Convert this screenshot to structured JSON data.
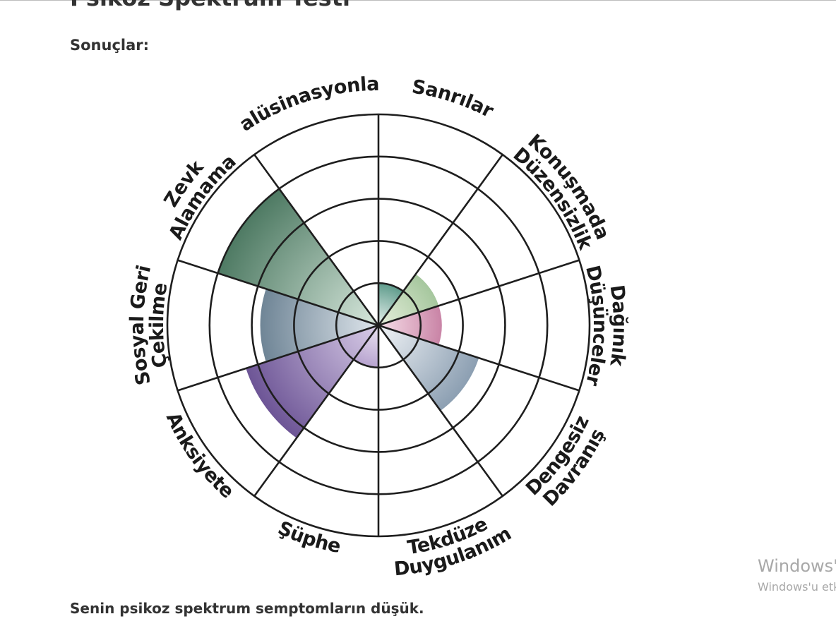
{
  "page": {
    "title": "Psikoz Spektrum Testi",
    "results_label": "Sonuçlar:",
    "summary": "Senin psikoz spektrum semptomların düşük."
  },
  "watermark": {
    "line1": "Windows'u",
    "line2": "Windows'u etk"
  },
  "chart_data": {
    "type": "polar-area",
    "rings": 5,
    "rlim": [
      0,
      5
    ],
    "grid": true,
    "categories": [
      "Sanrılar",
      "Konuşmada Düzensizlik",
      "Dağınık Düşünceler",
      "Dengesiz Davranış",
      "Tekdüze Duygulanım",
      "Şüphe",
      "Anksiyete",
      "Sosyal Geri Çekilme",
      "Zevk Alamama",
      "Halüsinasyonlar"
    ],
    "label_lines": [
      [
        "Sanrılar"
      ],
      [
        "Konuşmada",
        "Düzensizlik"
      ],
      [
        "Dağınık",
        "Düşünceler"
      ],
      [
        "Dengesiz",
        "Davranış"
      ],
      [
        "Tekdüze",
        "Duygulanım"
      ],
      [
        "Şüphe"
      ],
      [
        "Anksiyete"
      ],
      [
        "Sosyal Geri",
        "Çekilme"
      ],
      [
        "Zevk",
        "Alamama"
      ],
      [
        "Halüsinasyonlar"
      ]
    ],
    "values": [
      1,
      1.5,
      1.5,
      2.5,
      0,
      1,
      3.3,
      2.8,
      4,
      0
    ],
    "colors": [
      [
        "#e8f1ee",
        "#5f9c8c"
      ],
      [
        "#e6efdc",
        "#a6c79e"
      ],
      [
        "#f7dfe9",
        "#c984a6"
      ],
      [
        "#f1f4f7",
        "#8c9fb2"
      ],
      [
        "#eef2ee",
        "#9fb5a6"
      ],
      [
        "#ece5f3",
        "#b7a3cf"
      ],
      [
        "#d9cde8",
        "#6d5596"
      ],
      [
        "#dfe6ec",
        "#6f8596"
      ],
      [
        "#d8e8dd",
        "#4e7a63"
      ],
      [
        "#eaf1ec",
        "#8fb3a0"
      ]
    ]
  }
}
